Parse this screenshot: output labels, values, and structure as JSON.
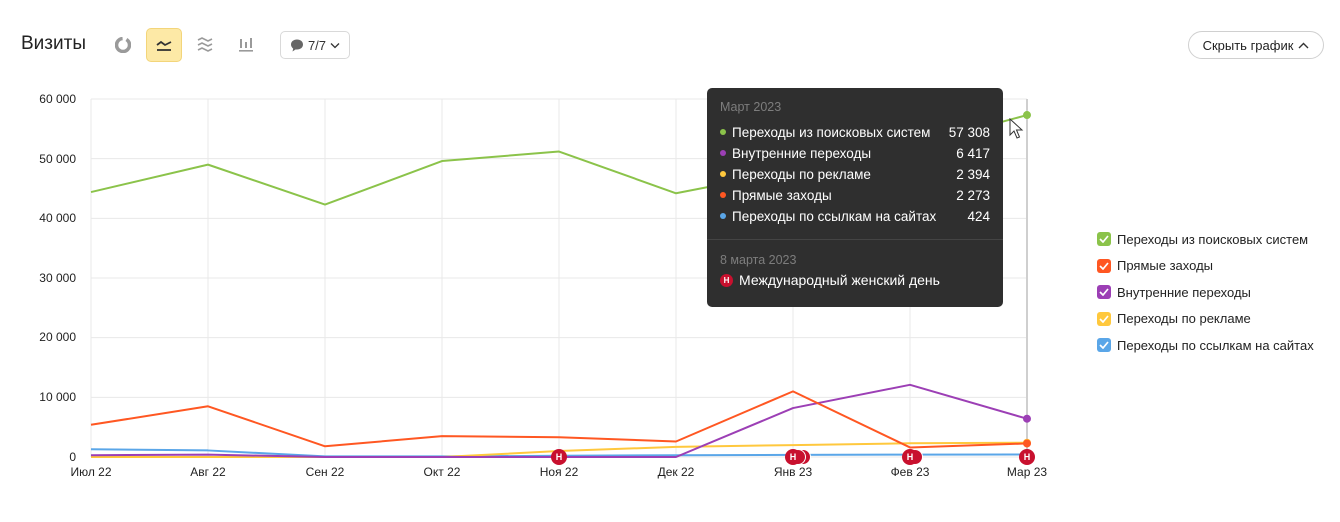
{
  "header": {
    "title": "Визиты",
    "view_buttons": [
      {
        "icon": "pie-chart-icon",
        "active": false
      },
      {
        "icon": "line-chart-icon",
        "active": true
      },
      {
        "icon": "area-chart-icon",
        "active": false
      },
      {
        "icon": "bar-chart-icon",
        "active": false
      }
    ],
    "notes_button": {
      "icon": "comment-icon",
      "label": "7/7",
      "chevron": "chevron-down-icon"
    },
    "hide_chart_button": {
      "label": "Скрыть график",
      "chevron": "chevron-up-icon"
    }
  },
  "colors": {
    "search": "#8bc34a",
    "direct": "#ff5722",
    "internal": "#9c3fb5",
    "ads": "#ffc83d",
    "links": "#5aa6e8",
    "grid": "#e8e8e8",
    "tooltip_bg": "#2f2f2f",
    "holiday": "#c8102e"
  },
  "tooltip": {
    "month": "Март 2023",
    "rows": [
      {
        "label": "Переходы из поисковых систем",
        "value": "57 308",
        "color": "#8bc34a"
      },
      {
        "label": "Внутренние переходы",
        "value": "6 417",
        "color": "#9c3fb5"
      },
      {
        "label": "Переходы по рекламе",
        "value": "2 394",
        "color": "#ffc83d"
      },
      {
        "label": "Прямые заходы",
        "value": "2 273",
        "color": "#ff5722"
      },
      {
        "label": "Переходы по ссылкам на сайтах",
        "value": "424",
        "color": "#5aa6e8"
      }
    ],
    "event_date": "8 марта 2023",
    "event_badge": "Н",
    "event_name": "Международный женский день"
  },
  "legend": [
    {
      "label": "Переходы из поисковых систем",
      "color": "#8bc34a",
      "checked": true
    },
    {
      "label": "Прямые заходы",
      "color": "#ff5722",
      "checked": true
    },
    {
      "label": "Внутренние переходы",
      "color": "#9c3fb5",
      "checked": true
    },
    {
      "label": "Переходы по рекламе",
      "color": "#ffc83d",
      "checked": true
    },
    {
      "label": "Переходы по ссылкам на сайтах",
      "color": "#5aa6e8",
      "checked": true
    }
  ],
  "holiday_markers": [
    {
      "month": "Ноя 22",
      "count": 1,
      "badge": "Н"
    },
    {
      "month": "Янв 23",
      "count": 3,
      "badge": "Н"
    },
    {
      "month": "Фев 23",
      "count": 2,
      "badge": "Н"
    },
    {
      "month": "Мар 23",
      "count": 1,
      "badge": "Н"
    }
  ],
  "chart_data": {
    "type": "line",
    "title": "Визиты",
    "xlabel": "",
    "ylabel": "",
    "ylim": [
      0,
      60000
    ],
    "grid": true,
    "legend_position": "right",
    "yticks": [
      "0",
      "10 000",
      "20 000",
      "30 000",
      "40 000",
      "50 000",
      "60 000"
    ],
    "categories": [
      "Июл 22",
      "Авг 22",
      "Сен 22",
      "Окт 22",
      "Ноя 22",
      "Дек 22",
      "Янв 23",
      "Фев 23",
      "Мар 23"
    ],
    "series": [
      {
        "name": "Переходы из поисковых систем",
        "color": "#8bc34a",
        "values": [
          44400,
          49000,
          42300,
          49600,
          51200,
          44200,
          48000,
          52000,
          57308
        ]
      },
      {
        "name": "Прямые заходы",
        "color": "#ff5722",
        "values": [
          5400,
          8500,
          1800,
          3500,
          3300,
          2600,
          11000,
          1600,
          2273
        ]
      },
      {
        "name": "Внутренние переходы",
        "color": "#9c3fb5",
        "values": [
          300,
          400,
          0,
          0,
          0,
          0,
          8200,
          12100,
          6417
        ]
      },
      {
        "name": "Переходы по рекламе",
        "color": "#ffc83d",
        "values": [
          0,
          0,
          0,
          0,
          1000,
          1700,
          2000,
          2300,
          2394
        ]
      },
      {
        "name": "Переходы по ссылкам на сайтах",
        "color": "#5aa6e8",
        "values": [
          1300,
          1100,
          100,
          100,
          200,
          300,
          350,
          400,
          424
        ]
      }
    ],
    "hovered_category": "Мар 23"
  }
}
